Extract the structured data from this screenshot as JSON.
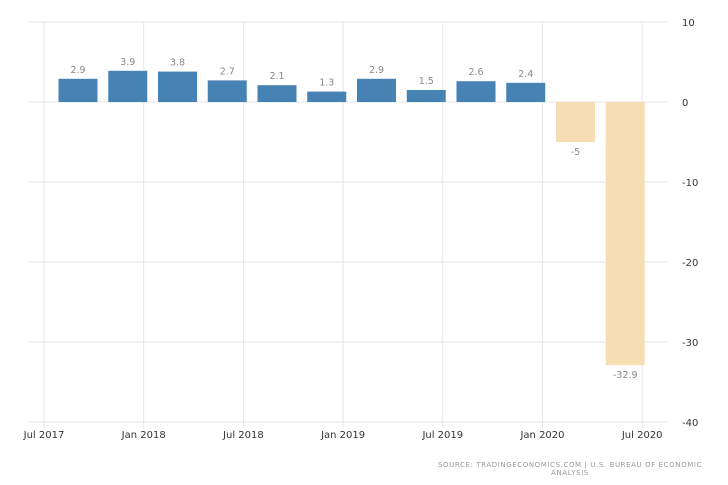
{
  "chart_data": {
    "type": "bar",
    "categories": [
      "2017 Q3",
      "2017 Q4",
      "2018 Q1",
      "2018 Q2",
      "2018 Q3",
      "2018 Q4",
      "2019 Q1",
      "2019 Q2",
      "2019 Q3",
      "2019 Q4",
      "2020 Q1",
      "2020 Q2"
    ],
    "values": [
      2.9,
      3.9,
      3.8,
      2.7,
      2.1,
      1.3,
      2.9,
      1.5,
      2.6,
      2.4,
      -5,
      -32.9
    ],
    "data_labels": [
      "2.9",
      "3.9",
      "3.8",
      "2.7",
      "2.1",
      "1.3",
      "2.9",
      "1.5",
      "2.6",
      "2.4",
      "-5",
      "-32.9"
    ],
    "title": "",
    "xlabel": "",
    "ylabel": "",
    "ylim": [
      -40,
      10
    ],
    "y_ticks": [
      "10",
      "0",
      "-10",
      "-20",
      "-30",
      "-40"
    ],
    "x_ticks": [
      "Jul 2017",
      "Jan 2018",
      "Jul 2018",
      "Jan 2019",
      "Jul 2019",
      "Jan 2020",
      "Jul 2020"
    ],
    "y_axis_position": "right",
    "grid": true,
    "colors": {
      "positive": "#4682b4",
      "negative": "#f5deb3",
      "grid": "#e6e6e6"
    }
  },
  "source": "SOURCE: TRADINGECONOMICS.COM | U.S. BUREAU OF ECONOMIC ANALYSIS"
}
